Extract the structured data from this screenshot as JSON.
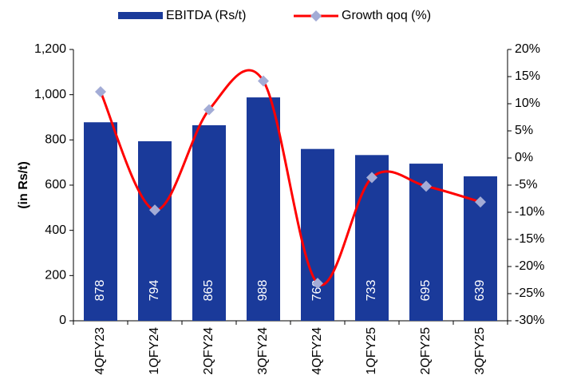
{
  "chart_data": {
    "type": "bar_line",
    "categories": [
      "4QFY23",
      "1QFY24",
      "2QFY24",
      "3QFY24",
      "4QFY24",
      "1QFY25",
      "2QFY25",
      "3QFY25"
    ],
    "series": [
      {
        "name": "EBITDA (Rs/t)",
        "color": "#1a3a9a",
        "type": "bar",
        "values": [
          878,
          794,
          865,
          988,
          760,
          733,
          695,
          639
        ]
      },
      {
        "name": "Growth qoq (%)",
        "color": "#ff0000",
        "marker_color": "#a3acd6",
        "type": "line",
        "axis": "y2",
        "values": [
          12.2,
          -9.6,
          8.9,
          14.2,
          -23.1,
          -3.6,
          -5.2,
          -8.1
        ]
      }
    ],
    "ylabel": "(in Rs/t)",
    "ylim": [
      0,
      1200
    ],
    "yticks": [
      0,
      200,
      400,
      600,
      800,
      {
        "value": 1000,
        "label": "1,000"
      },
      {
        "value": 1200,
        "label": "1,200"
      }
    ],
    "y2lim": [
      -30,
      20
    ],
    "y2ticks": [
      {
        "value": -30,
        "label": "-30%"
      },
      {
        "value": -25,
        "label": "-25%"
      },
      {
        "value": -20,
        "label": "-20%"
      },
      {
        "value": -15,
        "label": "-15%"
      },
      {
        "value": -10,
        "label": "-10%"
      },
      {
        "value": -5,
        "label": "-5%"
      },
      {
        "value": 0,
        "label": "0%"
      },
      {
        "value": 5,
        "label": "5%"
      },
      {
        "value": 10,
        "label": "10%"
      },
      {
        "value": 15,
        "label": "15%"
      },
      {
        "value": 20,
        "label": "20%"
      }
    ],
    "legend": "top"
  }
}
